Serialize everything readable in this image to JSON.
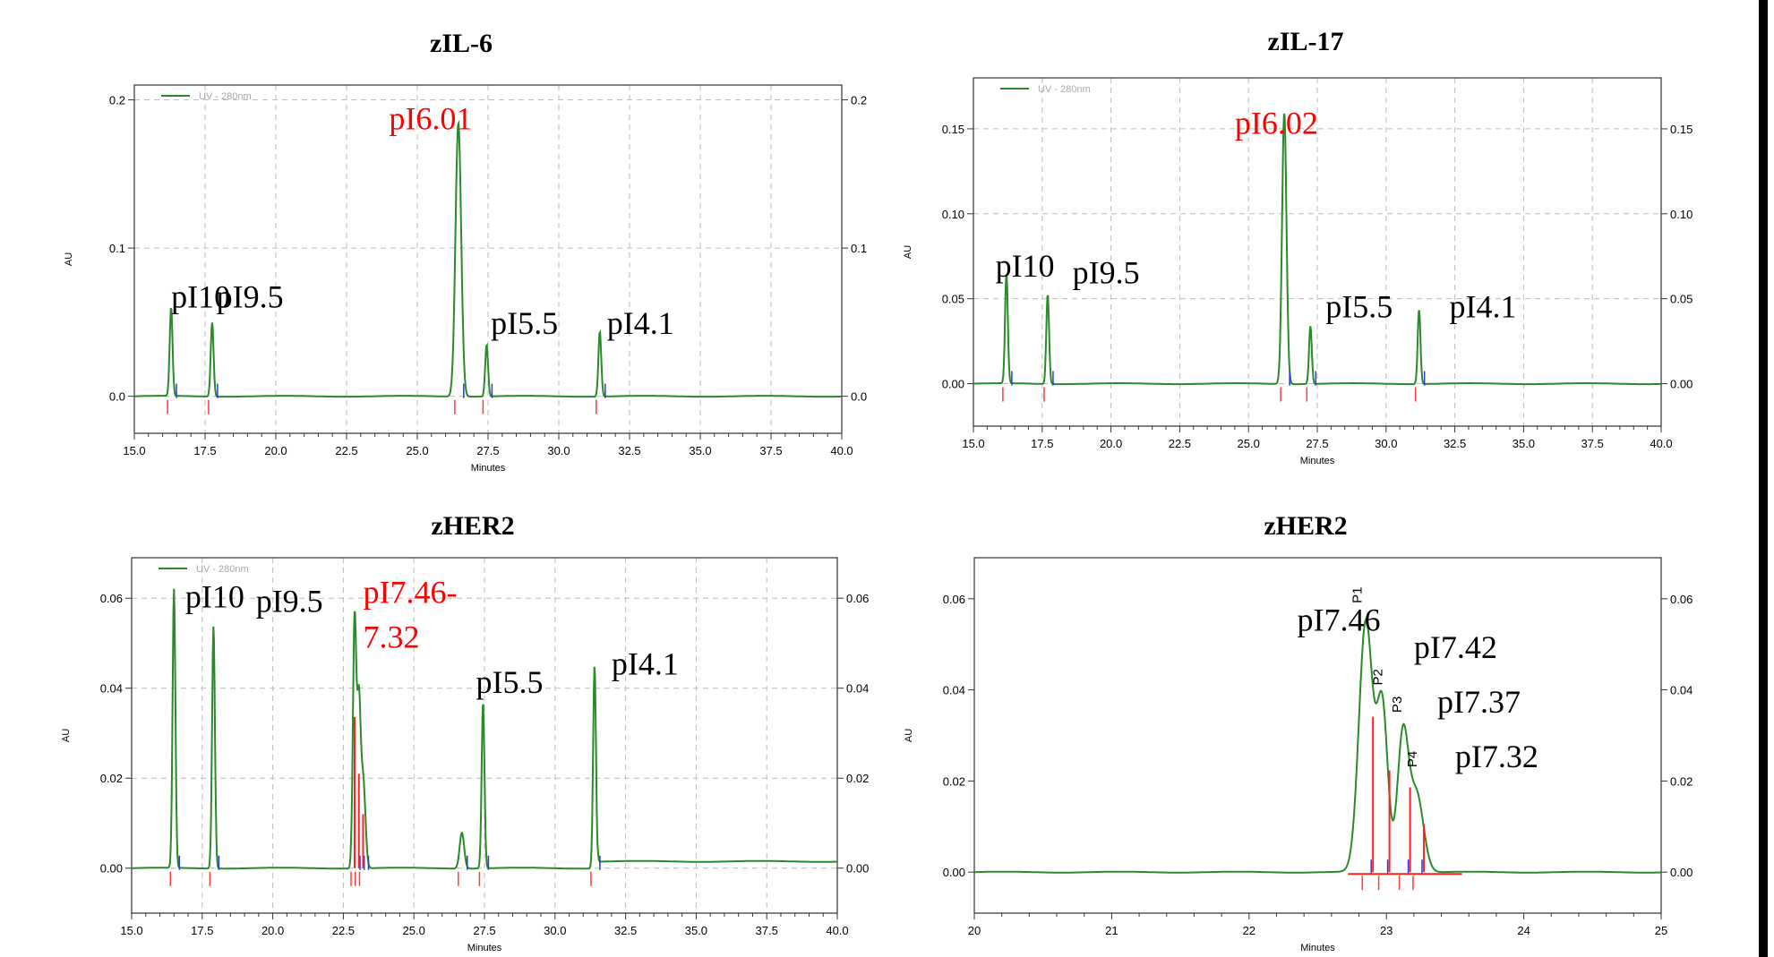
{
  "chart_data": [
    {
      "type": "line",
      "title": "zIL-6",
      "xlabel": "Minutes",
      "ylabel": "AU",
      "xlim": [
        15,
        40
      ],
      "ylim": [
        -0.025,
        0.21
      ],
      "xticks": [
        "15.0",
        "17.5",
        "20.0",
        "22.5",
        "25.0",
        "27.5",
        "30.0",
        "32.5",
        "35.0",
        "37.5",
        "40.0"
      ],
      "yticks": [
        0.0,
        0.1,
        0.2
      ],
      "ytick_labels": [
        "0.0",
        "0.1",
        "0.2"
      ],
      "grid": true,
      "legend": {
        "position": "top-left",
        "label": "UV - 280nm"
      },
      "series": [
        {
          "name": "UV - 280nm",
          "color": "#2a8a2a",
          "peaks": [
            {
              "x": 16.3,
              "y": 0.06,
              "w": 0.05
            },
            {
              "x": 17.75,
              "y": 0.05,
              "w": 0.05
            },
            {
              "x": 26.45,
              "y": 0.185,
              "w": 0.1
            },
            {
              "x": 27.45,
              "y": 0.035,
              "w": 0.05
            },
            {
              "x": 31.45,
              "y": 0.044,
              "w": 0.05
            }
          ]
        }
      ],
      "annotations": [
        {
          "text": "pI10",
          "x": 16.3,
          "y": 0.06,
          "color": "#000000"
        },
        {
          "text": "pI9.5",
          "x": 17.9,
          "y": 0.06,
          "color": "#000000"
        },
        {
          "text": "pI6.01",
          "x": 24.0,
          "y": 0.18,
          "color": "#ff0000"
        },
        {
          "text": "pI5.5",
          "x": 27.6,
          "y": 0.042,
          "color": "#000000"
        },
        {
          "text": "pI4.1",
          "x": 31.7,
          "y": 0.042,
          "color": "#000000"
        }
      ]
    },
    {
      "type": "line",
      "title": "zIL-17",
      "xlabel": "Minutes",
      "ylabel": "AU",
      "xlim": [
        15,
        40
      ],
      "ylim": [
        -0.025,
        0.18
      ],
      "xticks": [
        "15.0",
        "17.5",
        "20.0",
        "22.5",
        "25.0",
        "27.5",
        "30.0",
        "32.5",
        "35.0",
        "37.5",
        "40.0"
      ],
      "yticks": [
        0.0,
        0.05,
        0.1,
        0.15
      ],
      "ytick_labels": [
        "0.00",
        "0.05",
        "0.10",
        "0.15"
      ],
      "grid": true,
      "legend": {
        "position": "top-left",
        "label": "UV - 280nm"
      },
      "series": [
        {
          "name": "UV - 280nm",
          "color": "#2a8a2a",
          "peaks": [
            {
              "x": 16.2,
              "y": 0.065,
              "w": 0.05
            },
            {
              "x": 17.7,
              "y": 0.053,
              "w": 0.05
            },
            {
              "x": 26.3,
              "y": 0.16,
              "w": 0.08
            },
            {
              "x": 27.25,
              "y": 0.034,
              "w": 0.05
            },
            {
              "x": 31.2,
              "y": 0.044,
              "w": 0.05
            }
          ]
        }
      ],
      "annotations": [
        {
          "text": "pI10",
          "x": 15.8,
          "y": 0.063,
          "color": "#000000"
        },
        {
          "text": "pI9.5",
          "x": 18.6,
          "y": 0.059,
          "color": "#000000"
        },
        {
          "text": "pI6.02",
          "x": 24.5,
          "y": 0.147,
          "color": "#ff0000"
        },
        {
          "text": "pI5.5",
          "x": 27.8,
          "y": 0.039,
          "color": "#000000"
        },
        {
          "text": "pI4.1",
          "x": 32.3,
          "y": 0.039,
          "color": "#000000"
        }
      ]
    },
    {
      "type": "line",
      "title": "zHER2",
      "xlabel": "Minutes",
      "ylabel": "AU",
      "xlim": [
        15,
        40
      ],
      "ylim": [
        -0.01,
        0.069
      ],
      "xticks": [
        "15.0",
        "17.5",
        "20.0",
        "22.5",
        "25.0",
        "27.5",
        "30.0",
        "32.5",
        "35.0",
        "37.5",
        "40.0"
      ],
      "yticks": [
        0.0,
        0.02,
        0.04,
        0.06
      ],
      "ytick_labels": [
        "0.00",
        "0.02",
        "0.04",
        "0.06"
      ],
      "grid": true,
      "legend": {
        "position": "top-left",
        "label": "UV - 280nm"
      },
      "series": [
        {
          "name": "UV - 280nm",
          "color": "#2a8a2a",
          "peaks": [
            {
              "x": 16.5,
              "y": 0.062,
              "w": 0.05
            },
            {
              "x": 17.9,
              "y": 0.054,
              "w": 0.05
            },
            {
              "x": 22.9,
              "y": 0.056,
              "w": 0.06
            },
            {
              "x": 23.05,
              "y": 0.035,
              "w": 0.06
            },
            {
              "x": 23.2,
              "y": 0.02,
              "w": 0.08
            },
            {
              "x": 26.7,
              "y": 0.008,
              "w": 0.08
            },
            {
              "x": 27.45,
              "y": 0.037,
              "w": 0.05
            },
            {
              "x": 31.4,
              "y": 0.045,
              "w": 0.05
            }
          ]
        }
      ],
      "annotations": [
        {
          "text": "pI10",
          "x": 16.9,
          "y": 0.058,
          "color": "#000000"
        },
        {
          "text": "pI9.5",
          "x": 19.4,
          "y": 0.057,
          "color": "#000000"
        },
        {
          "text": "pI7.46-",
          "x": 23.2,
          "y": 0.059,
          "color": "#ff0000"
        },
        {
          "text": "7.32",
          "x": 23.2,
          "y": 0.049,
          "color": "#ff0000"
        },
        {
          "text": "pI5.5",
          "x": 27.2,
          "y": 0.039,
          "color": "#000000"
        },
        {
          "text": "pI4.1",
          "x": 32.0,
          "y": 0.043,
          "color": "#000000"
        }
      ]
    },
    {
      "type": "line",
      "title": "zHER2",
      "xlabel": "Minutes",
      "ylabel": "AU",
      "xlim": [
        20,
        25
      ],
      "ylim": [
        -0.009,
        0.069
      ],
      "xticks": [
        "20",
        "21",
        "22",
        "23",
        "24",
        "25"
      ],
      "yticks": [
        0.0,
        0.02,
        0.04,
        0.06
      ],
      "ytick_labels": [
        "0.00",
        "0.02",
        "0.04",
        "0.06"
      ],
      "grid": false,
      "series": [
        {
          "name": "",
          "color": "#2a8a2a",
          "peaks": [
            {
              "x": 22.85,
              "y": 0.055,
              "w": 0.05
            },
            {
              "x": 22.97,
              "y": 0.036,
              "w": 0.04
            },
            {
              "x": 23.12,
              "y": 0.03,
              "w": 0.04
            },
            {
              "x": 23.22,
              "y": 0.017,
              "w": 0.05
            }
          ]
        }
      ],
      "peak_labels": [
        {
          "text": "P1",
          "x": 22.82,
          "y": 0.059
        },
        {
          "text": "P2",
          "x": 22.97,
          "y": 0.041
        },
        {
          "text": "P3",
          "x": 23.11,
          "y": 0.035
        },
        {
          "text": "P4",
          "x": 23.22,
          "y": 0.023
        }
      ],
      "annotations": [
        {
          "text": "pI7.46",
          "x": 22.35,
          "y": 0.053,
          "color": "#000000"
        },
        {
          "text": "pI7.42",
          "x": 23.2,
          "y": 0.047,
          "color": "#000000"
        },
        {
          "text": "pI7.37",
          "x": 23.37,
          "y": 0.035,
          "color": "#000000"
        },
        {
          "text": "pI7.32",
          "x": 23.5,
          "y": 0.023,
          "color": "#000000"
        }
      ]
    }
  ]
}
